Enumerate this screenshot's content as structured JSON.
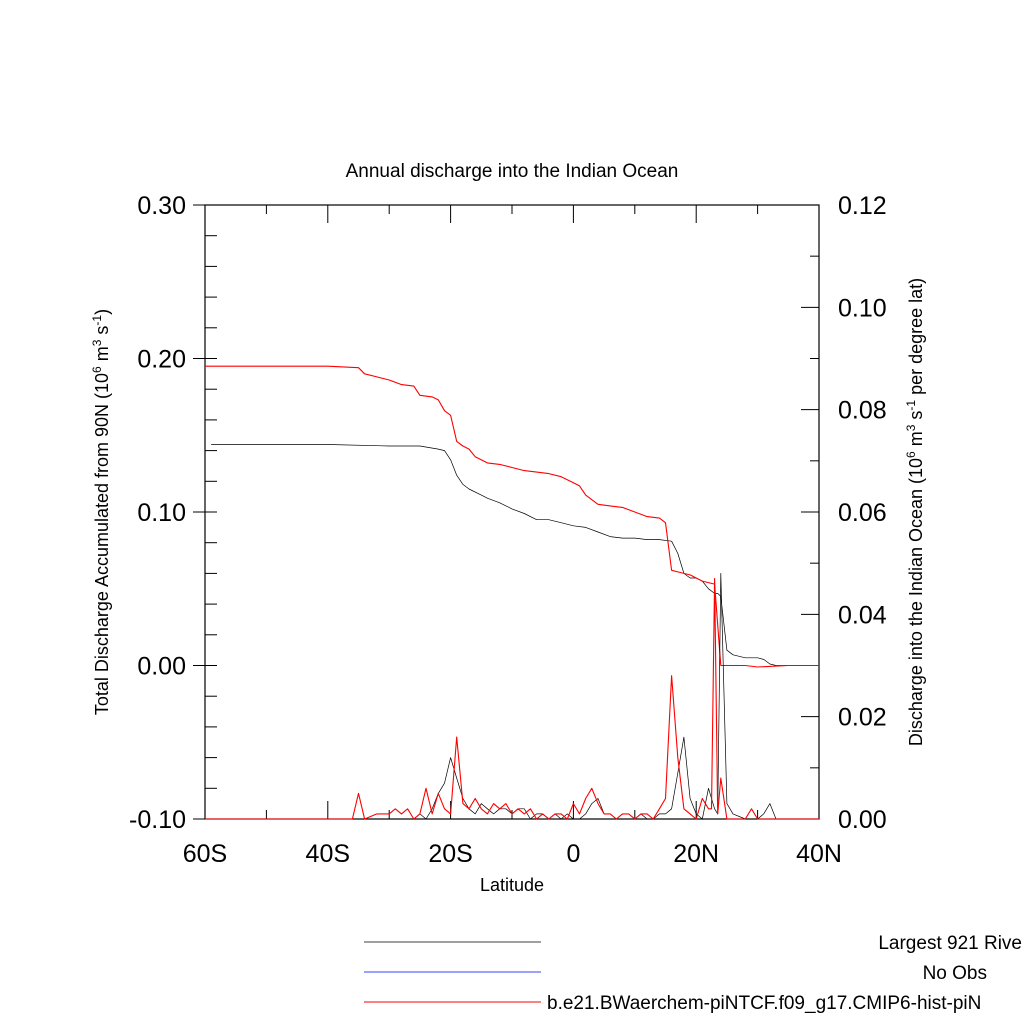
{
  "chart_data": {
    "type": "line",
    "title": "Annual discharge into the Indian Ocean",
    "xlabel": "Latitude",
    "ylabel_left_text": "Total Discharge Accumulated from 90N (10",
    "ylabel_left_exp1": "6",
    "ylabel_left_mid": " m",
    "ylabel_left_exp2": "3",
    "ylabel_left_mid2": " s",
    "ylabel_left_exp3": "-1",
    "ylabel_left_end": ")",
    "ylabel_right_text": "Discharge into the Indian Ocean (10",
    "ylabel_right_exp1": "6",
    "ylabel_right_mid": " m",
    "ylabel_right_exp2": "3",
    "ylabel_right_mid2": " s",
    "ylabel_right_exp3": "-1",
    "ylabel_right_end": " per degree lat)",
    "xlim": [
      -60,
      40
    ],
    "ylim_left": [
      -0.1,
      0.3
    ],
    "ylim_right": [
      0.0,
      0.12
    ],
    "x_ticks": [
      -60,
      -40,
      -20,
      0,
      20,
      40
    ],
    "x_tick_labels": [
      "60S",
      "40S",
      "20S",
      "0",
      "20N",
      "40N"
    ],
    "y_left_ticks": [
      -0.1,
      0.0,
      0.1,
      0.2,
      0.3
    ],
    "y_left_tick_labels": [
      "-0.10",
      "0.00",
      "0.10",
      "0.20",
      "0.30"
    ],
    "y_right_ticks": [
      0.0,
      0.02,
      0.04,
      0.06,
      0.08,
      0.1,
      0.12
    ],
    "y_right_tick_labels": [
      "0.00",
      "0.02",
      "0.04",
      "0.06",
      "0.08",
      "0.10",
      "0.12"
    ],
    "legend_placement": "bottom",
    "series": [
      {
        "name": "Largest 921 Rive",
        "color": "#000000",
        "axis": "left",
        "x": [
          -59,
          -50,
          -40,
          -30,
          -25,
          -22,
          -21,
          -20,
          -19,
          -18,
          -17,
          -15,
          -14,
          -12,
          -10,
          -8,
          -6,
          -4,
          -2,
          0,
          2,
          4,
          6,
          8,
          10,
          12,
          14,
          16,
          17,
          18,
          19,
          20,
          21,
          22,
          23,
          23.5,
          24,
          25,
          26,
          28,
          30,
          31,
          32,
          33,
          35,
          40
        ],
        "y": [
          0.144,
          0.144,
          0.144,
          0.143,
          0.143,
          0.141,
          0.14,
          0.134,
          0.124,
          0.118,
          0.115,
          0.111,
          0.109,
          0.106,
          0.102,
          0.099,
          0.095,
          0.095,
          0.093,
          0.091,
          0.09,
          0.087,
          0.084,
          0.083,
          0.083,
          0.082,
          0.082,
          0.081,
          0.073,
          0.06,
          0.057,
          0.057,
          0.055,
          0.05,
          0.047,
          0.047,
          0.045,
          0.01,
          0.007,
          0.005,
          0.005,
          0.004,
          0.001,
          0.0,
          0.0,
          0.0
        ]
      },
      {
        "name": "No Obs",
        "color": "#3344ff",
        "axis": "left",
        "x": [],
        "y": []
      },
      {
        "name": "b.e21.BWaerchem-piNTCF.f09_g17.CMIP6-hist-piN",
        "color": "#ff0000",
        "axis": "left",
        "x": [
          -60,
          -50,
          -40,
          -35,
          -34,
          -32,
          -30,
          -28,
          -26,
          -25,
          -23,
          -22,
          -21,
          -20,
          -19,
          -18,
          -17,
          -16,
          -14,
          -12,
          -10,
          -8,
          -6,
          -4,
          -2,
          0,
          1,
          2,
          3,
          4,
          6,
          8,
          10,
          12,
          14,
          15,
          16,
          17,
          18,
          19,
          20,
          21,
          23,
          24,
          25,
          26,
          28,
          30,
          35,
          40
        ],
        "y": [
          0.195,
          0.195,
          0.195,
          0.194,
          0.19,
          0.188,
          0.186,
          0.183,
          0.182,
          0.176,
          0.175,
          0.173,
          0.166,
          0.163,
          0.146,
          0.143,
          0.141,
          0.136,
          0.132,
          0.131,
          0.129,
          0.127,
          0.126,
          0.125,
          0.123,
          0.119,
          0.117,
          0.111,
          0.108,
          0.105,
          0.104,
          0.103,
          0.1,
          0.097,
          0.096,
          0.093,
          0.062,
          0.061,
          0.06,
          0.059,
          0.057,
          0.055,
          0.053,
          0.0,
          0.0,
          0.0,
          0.0,
          -0.001,
          0.0,
          0.0
        ]
      },
      {
        "name": "Largest 921 Rive",
        "color": "#000000",
        "axis": "right",
        "x": [
          -60,
          -40,
          -35,
          -30,
          -27,
          -26,
          -25,
          -24,
          -23,
          -22,
          -21,
          -20,
          -19,
          -18,
          -17,
          -16,
          -15,
          -14,
          -13,
          -12,
          -11,
          -10,
          -9,
          -8,
          -7,
          -6,
          -5,
          -4,
          -3,
          -2,
          -1,
          0,
          1,
          2,
          3,
          4,
          5,
          6,
          7,
          8,
          9,
          10,
          11,
          12,
          13,
          14,
          15,
          16,
          17,
          18,
          19,
          20,
          21,
          22,
          23,
          23.5,
          24,
          25,
          26,
          28,
          30,
          31,
          32,
          33,
          35,
          40
        ],
        "y": [
          0.0,
          0.0,
          0.0,
          0.0,
          0.0,
          0.0,
          0.001,
          0.0,
          0.002,
          0.005,
          0.007,
          0.012,
          0.008,
          0.004,
          0.002,
          0.001,
          0.003,
          0.002,
          0.001,
          0.002,
          0.002,
          0.001,
          0.002,
          0.002,
          0.0,
          0.001,
          0.001,
          0.0,
          0.001,
          0.0,
          0.001,
          0.0,
          0.0,
          0.001,
          0.003,
          0.004,
          0.001,
          0.001,
          0.0,
          0.001,
          0.001,
          0.0,
          0.001,
          0.0,
          0.0,
          0.001,
          0.001,
          0.002,
          0.009,
          0.016,
          0.004,
          0.001,
          0.0,
          0.006,
          0.002,
          0.001,
          0.048,
          0.003,
          0.001,
          0.0,
          0.0,
          0.001,
          0.003,
          0.0,
          0.0,
          0.0
        ]
      },
      {
        "name": "b.e21.BWaerchem-piNTCF.f09_g17.CMIP6-hist-piN",
        "color": "#ff0000",
        "axis": "right",
        "x": [
          -60,
          -40,
          -36,
          -35,
          -34,
          -32,
          -30,
          -29,
          -28,
          -27,
          -26,
          -25,
          -24,
          -23,
          -22,
          -21,
          -20,
          -19,
          -18,
          -17,
          -16,
          -15,
          -14,
          -13,
          -12,
          -11,
          -10,
          -9,
          -8,
          -7,
          -6,
          -5,
          -4,
          -3,
          -2,
          -1,
          0,
          1,
          2,
          3,
          4,
          5,
          6,
          7,
          8,
          9,
          10,
          11,
          12,
          13,
          14,
          15,
          16,
          17,
          18,
          19,
          20,
          21,
          22,
          22.5,
          23,
          23.5,
          24,
          25,
          26,
          28,
          29,
          30,
          35,
          40
        ],
        "y": [
          0.0,
          0.0,
          0.0,
          0.005,
          0.0,
          0.001,
          0.001,
          0.002,
          0.001,
          0.002,
          0.0,
          0.001,
          0.006,
          0.001,
          0.005,
          0.002,
          0.001,
          0.016,
          0.003,
          0.002,
          0.004,
          0.002,
          0.001,
          0.003,
          0.002,
          0.003,
          0.001,
          0.002,
          0.001,
          0.002,
          0.0,
          0.001,
          0.0,
          0.001,
          0.001,
          0.0,
          0.003,
          0.001,
          0.004,
          0.006,
          0.003,
          0.001,
          0.001,
          0.0,
          0.001,
          0.001,
          0.0,
          0.001,
          0.001,
          0.0,
          0.002,
          0.004,
          0.028,
          0.012,
          0.002,
          0.001,
          0.0,
          0.004,
          0.002,
          0.002,
          0.047,
          0.001,
          0.008,
          0.0,
          0.0,
          0.0,
          0.002,
          0.0,
          0.0,
          0.0
        ]
      }
    ]
  }
}
